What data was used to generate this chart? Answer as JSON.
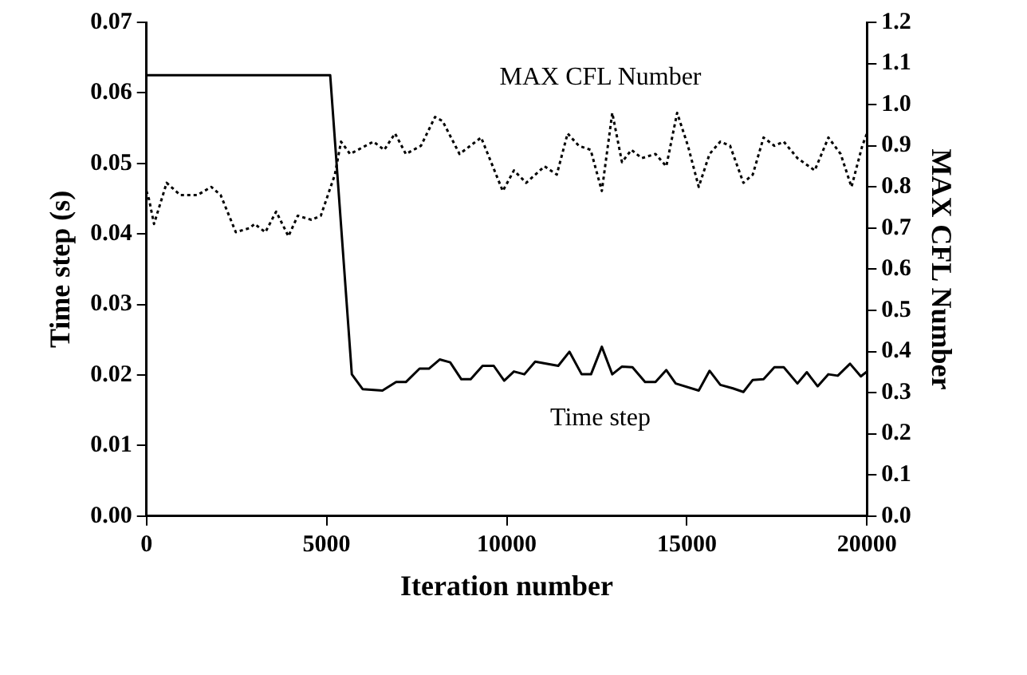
{
  "chart_data": {
    "type": "line",
    "xlabel": "Iteration number",
    "ylabel": "Time step (s)",
    "y2label": "MAX CFL Number",
    "xlim": [
      0,
      20000
    ],
    "xticks": [
      0,
      5000,
      10000,
      15000,
      20000
    ],
    "ylim": [
      0,
      0.07
    ],
    "yticks": [
      {
        "value": 0,
        "label": "0.00"
      },
      {
        "value": 0.01,
        "label": "0.01"
      },
      {
        "value": 0.02,
        "label": "0.02"
      },
      {
        "value": 0.03,
        "label": "0.03"
      },
      {
        "value": 0.04,
        "label": "0.04"
      },
      {
        "value": 0.05,
        "label": "0.05"
      },
      {
        "value": 0.06,
        "label": "0.06"
      },
      {
        "value": 0.07,
        "label": "0.07"
      }
    ],
    "y2lim": [
      0,
      1.2
    ],
    "y2ticks": [
      {
        "value": 0,
        "label": "0.0"
      },
      {
        "value": 0.1,
        "label": "0.1"
      },
      {
        "value": 0.2,
        "label": "0.2"
      },
      {
        "value": 0.3,
        "label": "0.3"
      },
      {
        "value": 0.4,
        "label": "0.4"
      },
      {
        "value": 0.5,
        "label": "0.5"
      },
      {
        "value": 0.6,
        "label": "0.6"
      },
      {
        "value": 0.7,
        "label": "0.7"
      },
      {
        "value": 0.8,
        "label": "0.8"
      },
      {
        "value": 0.9,
        "label": "0.9"
      },
      {
        "value": 1,
        "label": "1.0"
      },
      {
        "value": 1.1,
        "label": "1.1"
      },
      {
        "value": 1.2,
        "label": "1.2"
      }
    ],
    "grid": false,
    "legend": false,
    "marker": "none",
    "series": [
      {
        "name": "Time step",
        "color": "#000000",
        "line_style": "solid",
        "x": [
          0,
          5100,
          5700,
          6000,
          6550,
          6930,
          7200,
          7580,
          7840,
          8140,
          8430,
          8740,
          9000,
          9330,
          9640,
          9930,
          10200,
          10490,
          10790,
          11430,
          11740,
          12080,
          12340,
          12640,
          12930,
          13200,
          13490,
          13840,
          14130,
          14430,
          14690,
          15330,
          15630,
          15930,
          16280,
          16570,
          16830,
          17130,
          17430,
          17690,
          18070,
          18330,
          18630,
          18930,
          19190,
          19530,
          19830,
          20000
        ],
        "values": [
          0.0625,
          0.0625,
          0.0201,
          0.018,
          0.0178,
          0.019,
          0.019,
          0.0209,
          0.0209,
          0.0222,
          0.0218,
          0.0194,
          0.0194,
          0.0213,
          0.0213,
          0.0192,
          0.0205,
          0.0201,
          0.0219,
          0.0213,
          0.0233,
          0.0201,
          0.0201,
          0.024,
          0.0201,
          0.0212,
          0.0211,
          0.019,
          0.019,
          0.0207,
          0.0188,
          0.0178,
          0.0206,
          0.0186,
          0.0181,
          0.0176,
          0.0193,
          0.0194,
          0.0211,
          0.0211,
          0.0188,
          0.0204,
          0.0184,
          0.0201,
          0.0199,
          0.0216,
          0.0198,
          0.0205
        ]
      },
      {
        "name": "MAX CFL Number",
        "color": "#000000",
        "line_style": "dotted",
        "axis": "y2",
        "x": [
          0,
          70,
          210,
          560,
          940,
          1410,
          1800,
          2060,
          2480,
          2870,
          3000,
          3300,
          3600,
          3940,
          4200,
          4580,
          4840,
          5230,
          5400,
          5650,
          6300,
          6600,
          6900,
          7200,
          7620,
          8010,
          8220,
          8690,
          9290,
          9890,
          10200,
          10540,
          11050,
          11390,
          11690,
          12000,
          12330,
          12640,
          12930,
          13200,
          13460,
          13750,
          14130,
          14430,
          14730,
          15030,
          15330,
          15630,
          15930,
          16200,
          16570,
          16830,
          17130,
          17430,
          17690,
          18070,
          18550,
          18930,
          19270,
          19570,
          19870,
          20000
        ],
        "values": [
          0.79,
          0.77,
          0.71,
          0.81,
          0.78,
          0.78,
          0.8,
          0.78,
          0.69,
          0.7,
          0.71,
          0.69,
          0.74,
          0.68,
          0.73,
          0.72,
          0.73,
          0.83,
          0.91,
          0.88,
          0.91,
          0.89,
          0.93,
          0.88,
          0.9,
          0.97,
          0.96,
          0.88,
          0.92,
          0.79,
          0.84,
          0.81,
          0.85,
          0.83,
          0.93,
          0.9,
          0.89,
          0.79,
          0.98,
          0.86,
          0.89,
          0.87,
          0.88,
          0.85,
          0.98,
          0.9,
          0.8,
          0.88,
          0.91,
          0.9,
          0.81,
          0.83,
          0.92,
          0.9,
          0.91,
          0.87,
          0.84,
          0.92,
          0.88,
          0.8,
          0.9,
          0.93
        ]
      }
    ]
  }
}
